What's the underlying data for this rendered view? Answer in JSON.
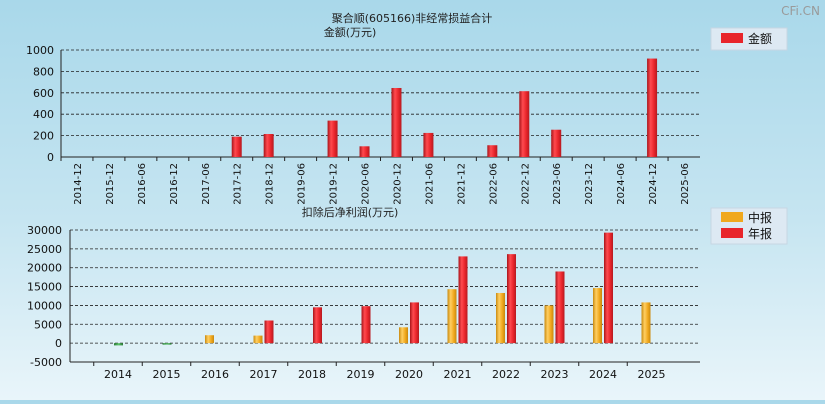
{
  "page": {
    "title": "聚合顺(605166)非经常损益合计",
    "watermark": "CFi.CN"
  },
  "colors": {
    "annual": "#e8252b",
    "interim": "#f0a81e",
    "negative": "#3aa14a"
  },
  "chart_data": [
    {
      "type": "bar",
      "ylabel": "金额(万元)",
      "ylim": [
        0,
        1000
      ],
      "yticks": [
        0,
        200,
        400,
        600,
        800,
        1000
      ],
      "grid": true,
      "legend": {
        "position": "top-right",
        "label": "金额"
      },
      "categories": [
        "2014-12",
        "2015-12",
        "2016-06",
        "2016-12",
        "2017-06",
        "2017-12",
        "2018-12",
        "2019-06",
        "2019-12",
        "2020-06",
        "2020-12",
        "2021-06",
        "2021-12",
        "2022-06",
        "2022-12",
        "2023-06",
        "2023-12",
        "2024-06",
        "2024-12",
        "2025-06"
      ],
      "values": [
        0,
        0,
        0,
        0,
        0,
        190,
        215,
        0,
        340,
        100,
        645,
        225,
        0,
        110,
        615,
        255,
        0,
        0,
        920,
        0
      ]
    },
    {
      "type": "bar",
      "ylabel": "扣除后净利润(万元)",
      "ylim": [
        -5000,
        30000
      ],
      "yticks": [
        -5000,
        0,
        5000,
        10000,
        15000,
        20000,
        25000,
        30000
      ],
      "grid": true,
      "legend": {
        "position": "top-right",
        "labels": [
          "中报",
          "年报"
        ]
      },
      "categories": [
        "2014",
        "2015",
        "2016",
        "2017",
        "2018",
        "2019",
        "2020",
        "2021",
        "2022",
        "2023",
        "2024",
        "2025"
      ],
      "series": [
        {
          "name": "中报",
          "values": [
            null,
            null,
            2100,
            2000,
            null,
            null,
            4200,
            14300,
            13300,
            10000,
            14600,
            10800
          ]
        },
        {
          "name": "年报",
          "values": [
            -600,
            -300,
            null,
            6000,
            9500,
            9800,
            10800,
            23000,
            23600,
            19000,
            29300,
            null
          ]
        }
      ]
    }
  ]
}
